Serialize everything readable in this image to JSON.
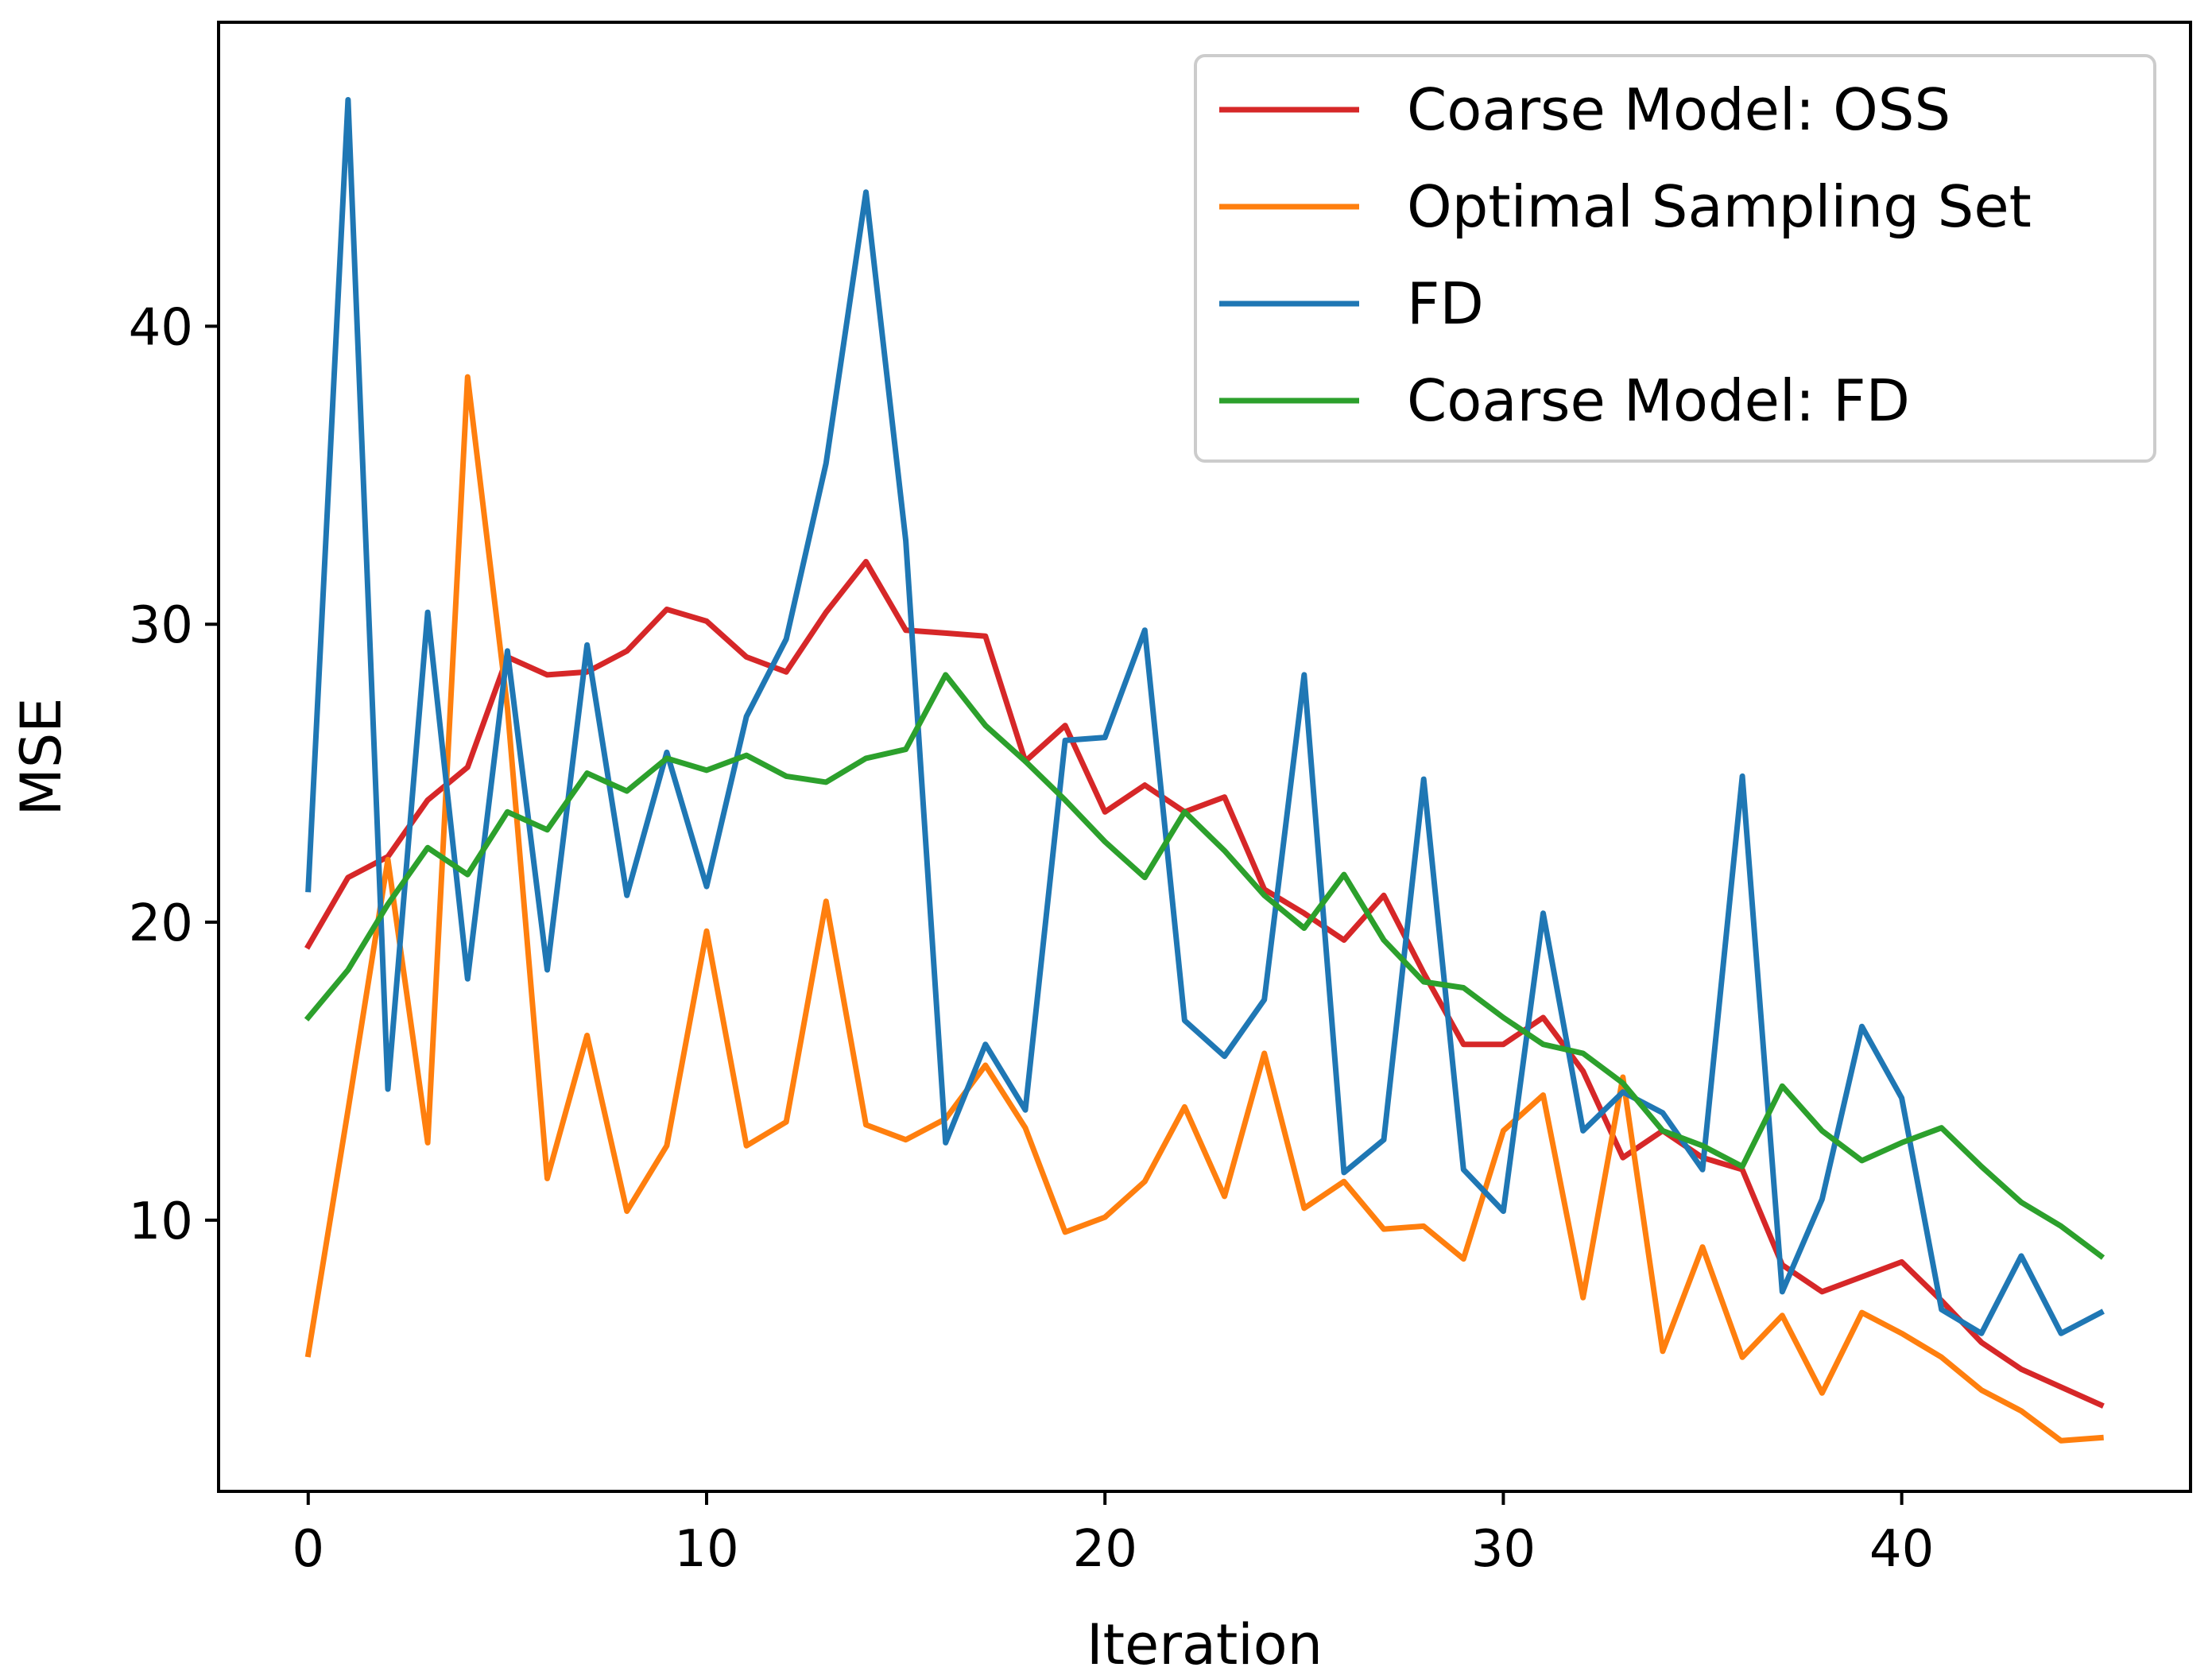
{
  "chart_data": {
    "type": "line",
    "xlabel": "Iteration",
    "ylabel": "MSE",
    "xlim": [
      -2.25,
      47.25
    ],
    "ylim": [
      0.9,
      50.2
    ],
    "xticks": [
      0,
      10,
      20,
      30,
      40
    ],
    "yticks": [
      10,
      20,
      30,
      40
    ],
    "grid": false,
    "legend_position": "top-right",
    "x": [
      0,
      1,
      2,
      3,
      4,
      5,
      6,
      7,
      8,
      9,
      10,
      11,
      12,
      13,
      14,
      15,
      16,
      17,
      18,
      19,
      20,
      21,
      22,
      23,
      24,
      25,
      26,
      27,
      28,
      29,
      30,
      31,
      32,
      33,
      34,
      35,
      36,
      37,
      38,
      39,
      40,
      41,
      42,
      43,
      44,
      45
    ],
    "series": [
      {
        "name": "Coarse Model: OSS",
        "color": "#d62728",
        "values": [
          19.2,
          21.5,
          22.2,
          24.1,
          25.2,
          28.9,
          28.3,
          28.4,
          29.1,
          30.5,
          30.1,
          28.9,
          28.4,
          30.4,
          32.1,
          29.8,
          29.7,
          29.6,
          25.4,
          26.6,
          23.7,
          24.6,
          23.7,
          24.2,
          21.1,
          20.3,
          19.4,
          20.9,
          18.3,
          15.9,
          15.9,
          16.8,
          15.0,
          12.1,
          13.0,
          12.1,
          11.7,
          8.5,
          7.6,
          8.1,
          8.6,
          7.3,
          5.9,
          5.0,
          4.4,
          3.8
        ]
      },
      {
        "name": "Optimal Sampling Set",
        "color": "#ff7f0e",
        "values": [
          5.5,
          13.7,
          22.1,
          12.6,
          38.3,
          27.2,
          11.4,
          16.2,
          10.3,
          12.5,
          19.7,
          12.5,
          13.3,
          20.7,
          13.2,
          12.7,
          13.4,
          15.2,
          13.1,
          9.6,
          10.1,
          11.3,
          13.8,
          10.8,
          15.6,
          10.4,
          11.3,
          9.7,
          9.8,
          8.7,
          13.0,
          14.2,
          7.4,
          14.8,
          5.6,
          9.1,
          5.4,
          6.8,
          4.2,
          6.9,
          6.2,
          5.4,
          4.3,
          3.6,
          2.6,
          2.7
        ]
      },
      {
        "name": "FD",
        "color": "#1f77b4",
        "values": [
          21.1,
          47.6,
          14.4,
          30.4,
          18.1,
          29.1,
          18.4,
          29.3,
          20.9,
          25.7,
          21.2,
          26.9,
          29.5,
          35.4,
          44.5,
          32.8,
          12.6,
          15.9,
          13.7,
          26.1,
          26.2,
          29.8,
          16.7,
          15.5,
          17.4,
          28.3,
          11.6,
          12.7,
          24.8,
          11.7,
          10.3,
          20.3,
          13.0,
          14.3,
          13.6,
          11.7,
          24.9,
          7.6,
          10.7,
          16.5,
          14.1,
          7.0,
          6.2,
          8.8,
          6.2,
          6.9
        ]
      },
      {
        "name": "Coarse Model: FD",
        "color": "#2ca02c",
        "values": [
          16.8,
          18.4,
          20.6,
          22.5,
          21.6,
          23.7,
          23.1,
          25.0,
          24.4,
          25.5,
          25.1,
          25.6,
          24.9,
          24.7,
          25.5,
          25.8,
          28.3,
          26.6,
          25.4,
          24.1,
          22.7,
          21.5,
          23.7,
          22.4,
          20.9,
          19.8,
          21.6,
          19.4,
          18.0,
          17.8,
          16.8,
          15.9,
          15.6,
          14.6,
          13.0,
          12.5,
          11.8,
          14.5,
          13.0,
          12.0,
          12.6,
          13.1,
          11.8,
          10.6,
          9.8,
          8.8
        ]
      }
    ]
  }
}
